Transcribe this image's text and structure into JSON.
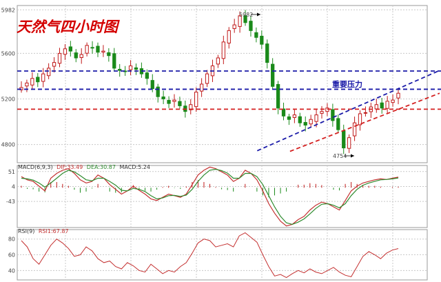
{
  "chart_data": [
    {
      "type": "candlestick",
      "title": "天然气四小时图",
      "yticks": [
        5982,
        5600,
        5200,
        4800
      ],
      "ylim": [
        4640,
        6020
      ],
      "grid": true,
      "annotations": [
        {
          "text": "5982",
          "value": 5982
        },
        {
          "text": "4754",
          "value": 4754
        },
        {
          "text": "重要压力"
        }
      ],
      "horizontal_lines": [
        {
          "value": 5445,
          "color": "#1a1aa8",
          "style": "dashed"
        },
        {
          "value": 5285,
          "color": "#1a1aa8",
          "style": "dashed"
        },
        {
          "value": 5110,
          "color": "#d42020",
          "style": "dashed"
        }
      ],
      "trend_lines": [
        {
          "from": [
            51,
            4745
          ],
          "to": [
            69,
            5450
          ],
          "color": "#1a1aa8",
          "style": "dashed"
        },
        {
          "from": [
            57,
            4740
          ],
          "to": [
            69,
            5250
          ],
          "color": "#d42020",
          "style": "dashed"
        }
      ],
      "close": [
        5300,
        5340,
        5380,
        5350,
        5420,
        5470,
        5520,
        5600,
        5640,
        5620,
        5560,
        5590,
        5670,
        5650,
        5610,
        5620,
        5580,
        5470,
        5450,
        5440,
        5490,
        5460,
        5420,
        5380,
        5290,
        5220,
        5200,
        5160,
        5190,
        5140,
        5090,
        5150,
        5260,
        5330,
        5420,
        5490,
        5560,
        5700,
        5800,
        5850,
        5930,
        5870,
        5800,
        5740,
        5680,
        5520,
        5310,
        5120,
        5050,
        5020,
        5060,
        4990,
        4970,
        5020,
        5060,
        5090,
        5120,
        5010,
        4930,
        4770,
        4860,
        4990,
        5070,
        5080,
        5130,
        5150,
        5120,
        5180,
        5190,
        5250
      ]
    },
    {
      "type": "line",
      "title": "MACD(6,9,3)",
      "legend": [
        {
          "text": "MACD(6,9,3)",
          "color": "#333333"
        },
        {
          "text": "DIF:33.49",
          "color": "#c43030"
        },
        {
          "text": "DEA:30.87",
          "color": "#2e8b2e"
        },
        {
          "text": "MACD:5.24",
          "color": "#333333"
        }
      ],
      "yticks": [
        51,
        4,
        -43
      ],
      "ylim": [
        -125,
        70
      ],
      "series": [
        {
          "name": "DIF",
          "color": "#c43030",
          "values": [
            35,
            25,
            20,
            5,
            -10,
            30,
            45,
            55,
            60,
            45,
            25,
            15,
            20,
            40,
            30,
            10,
            -5,
            -20,
            -10,
            5,
            -8,
            -20,
            -35,
            -40,
            -30,
            -20,
            -25,
            -30,
            -20,
            10,
            40,
            55,
            65,
            60,
            50,
            40,
            20,
            30,
            55,
            45,
            25,
            -10,
            -50,
            -80,
            -105,
            -120,
            -115,
            -100,
            -90,
            -70,
            -55,
            -45,
            -50,
            -60,
            -70,
            -40,
            -10,
            5,
            15,
            20,
            25,
            28,
            26,
            30,
            33.49
          ]
        },
        {
          "name": "DEA",
          "color": "#2e8b2e",
          "values": [
            30,
            28,
            24,
            15,
            2,
            15,
            30,
            45,
            55,
            50,
            38,
            25,
            22,
            30,
            30,
            20,
            8,
            -8,
            -10,
            -2,
            -5,
            -12,
            -25,
            -35,
            -32,
            -25,
            -24,
            -27,
            -23,
            -5,
            20,
            40,
            55,
            58,
            54,
            46,
            30,
            30,
            45,
            45,
            35,
            10,
            -25,
            -60,
            -90,
            -110,
            -115,
            -108,
            -98,
            -82,
            -65,
            -52,
            -50,
            -55,
            -63,
            -50,
            -25,
            -5,
            8,
            15,
            20,
            25,
            26,
            28,
            30.87
          ]
        }
      ]
    },
    {
      "type": "line",
      "title": "RSI(9)",
      "legend": [
        {
          "text": "RSI(9)",
          "color": "#333333"
        },
        {
          "text": "RSI1:67.87",
          "color": "#c43030"
        }
      ],
      "yticks": [
        80,
        60,
        40
      ],
      "ylim": [
        28,
        92
      ],
      "series": [
        {
          "name": "RSI1",
          "color": "#c43030",
          "values": [
            78,
            70,
            55,
            48,
            60,
            72,
            80,
            75,
            68,
            58,
            60,
            70,
            65,
            55,
            50,
            52,
            45,
            42,
            50,
            46,
            40,
            38,
            48,
            42,
            36,
            40,
            38,
            45,
            50,
            62,
            75,
            80,
            78,
            70,
            72,
            74,
            70,
            84,
            88,
            82,
            76,
            60,
            45,
            33,
            35,
            31,
            36,
            40,
            37,
            42,
            38,
            36,
            40,
            44,
            38,
            34,
            32,
            45,
            58,
            64,
            60,
            55,
            62,
            66,
            67.87
          ]
        }
      ]
    }
  ]
}
